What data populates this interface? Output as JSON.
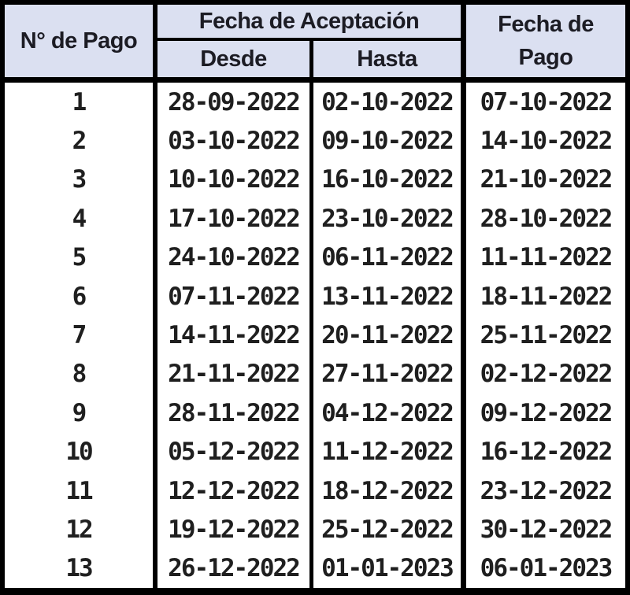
{
  "table": {
    "header": {
      "payment_number_label": "N° de Pago",
      "acceptance_group_label": "Fecha de Aceptación",
      "from_label": "Desde",
      "to_label": "Hasta",
      "payment_date_label": "Fecha de Pago"
    },
    "rows": [
      {
        "n": "1",
        "desde": "28-09-2022",
        "hasta": "02-10-2022",
        "pago": "07-10-2022"
      },
      {
        "n": "2",
        "desde": "03-10-2022",
        "hasta": "09-10-2022",
        "pago": "14-10-2022"
      },
      {
        "n": "3",
        "desde": "10-10-2022",
        "hasta": "16-10-2022",
        "pago": "21-10-2022"
      },
      {
        "n": "4",
        "desde": "17-10-2022",
        "hasta": "23-10-2022",
        "pago": "28-10-2022"
      },
      {
        "n": "5",
        "desde": "24-10-2022",
        "hasta": "06-11-2022",
        "pago": "11-11-2022"
      },
      {
        "n": "6",
        "desde": "07-11-2022",
        "hasta": "13-11-2022",
        "pago": "18-11-2022"
      },
      {
        "n": "7",
        "desde": "14-11-2022",
        "hasta": "20-11-2022",
        "pago": "25-11-2022"
      },
      {
        "n": "8",
        "desde": "21-11-2022",
        "hasta": "27-11-2022",
        "pago": "02-12-2022"
      },
      {
        "n": "9",
        "desde": "28-11-2022",
        "hasta": "04-12-2022",
        "pago": "09-12-2022"
      },
      {
        "n": "10",
        "desde": "05-12-2022",
        "hasta": "11-12-2022",
        "pago": "16-12-2022"
      },
      {
        "n": "11",
        "desde": "12-12-2022",
        "hasta": "18-12-2022",
        "pago": "23-12-2022"
      },
      {
        "n": "12",
        "desde": "19-12-2022",
        "hasta": "25-12-2022",
        "pago": "30-12-2022"
      },
      {
        "n": "13",
        "desde": "26-12-2022",
        "hasta": "01-01-2023",
        "pago": "06-01-2023"
      }
    ]
  },
  "colors": {
    "header_bg": "#dbe0f1",
    "body_bg": "#ffffff",
    "border": "#000000",
    "text": "#1f1f1f"
  }
}
